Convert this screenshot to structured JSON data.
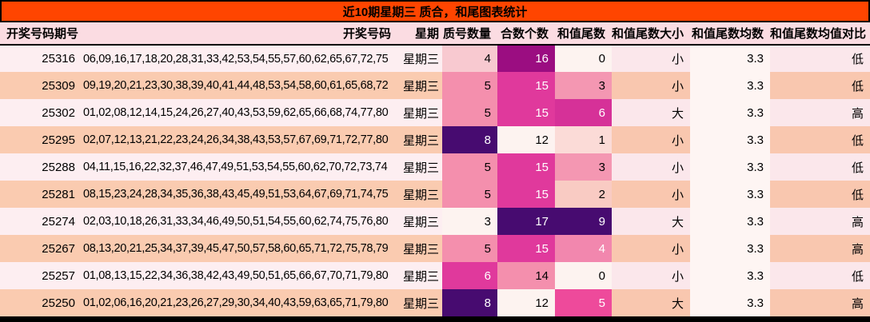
{
  "chart_data": {
    "type": "table",
    "title": "近10期星期三 质合，和尾图表统计",
    "columns": [
      {
        "key": "issue",
        "label": "开奖号码期号"
      },
      {
        "key": "numbers",
        "label": "开奖号码"
      },
      {
        "key": "week",
        "label": "星期"
      },
      {
        "key": "prime_count",
        "label": "质号数量"
      },
      {
        "key": "composite_count",
        "label": "合数个数"
      },
      {
        "key": "sum_tail",
        "label": "和值尾数"
      },
      {
        "key": "tail_size",
        "label": "和值尾数大小"
      },
      {
        "key": "tail_mean",
        "label": "和值尾数均数"
      },
      {
        "key": "tail_vs_mean",
        "label": "和值尾数均值对比"
      }
    ],
    "rows": [
      {
        "issue": "25316",
        "numbers": "06,09,16,17,18,20,28,31,33,42,53,54,55,57,60,62,65,67,72,75",
        "week": "星期三",
        "prime_count": {
          "text": "4",
          "bg": "#F8C9D0",
          "fg": "#000000"
        },
        "composite_count": {
          "text": "16",
          "bg": "#9B0D81",
          "fg": "#FFFFFF"
        },
        "sum_tail": {
          "text": "0",
          "bg": "#FDF3F0",
          "fg": "#000000"
        },
        "tail_size": "小",
        "tail_mean": "3.3",
        "tail_vs_mean": "低"
      },
      {
        "issue": "25309",
        "numbers": "09,19,20,21,23,30,38,39,40,41,44,48,53,54,58,60,61,65,68,72",
        "week": "星期三",
        "prime_count": {
          "text": "5",
          "bg": "#F48FAD",
          "fg": "#000000"
        },
        "composite_count": {
          "text": "15",
          "bg": "#E0399C",
          "fg": "#FFFFFF"
        },
        "sum_tail": {
          "text": "3",
          "bg": "#F497B2",
          "fg": "#000000"
        },
        "tail_size": "小",
        "tail_mean": "3.3",
        "tail_vs_mean": "低"
      },
      {
        "issue": "25302",
        "numbers": "01,02,08,12,14,15,24,26,27,40,43,53,59,62,65,66,68,74,77,80",
        "week": "星期三",
        "prime_count": {
          "text": "5",
          "bg": "#F48FAD",
          "fg": "#000000"
        },
        "composite_count": {
          "text": "15",
          "bg": "#E0399C",
          "fg": "#FFFFFF"
        },
        "sum_tail": {
          "text": "6",
          "bg": "#D63198",
          "fg": "#FFFFFF"
        },
        "tail_size": "大",
        "tail_mean": "3.3",
        "tail_vs_mean": "高"
      },
      {
        "issue": "25295",
        "numbers": "02,07,12,13,21,22,23,24,26,34,38,43,53,57,67,69,71,72,77,80",
        "week": "星期三",
        "prime_count": {
          "text": "8",
          "bg": "#470B70",
          "fg": "#FFFFFF"
        },
        "composite_count": {
          "text": "12",
          "bg": "#FDF3F0",
          "fg": "#000000"
        },
        "sum_tail": {
          "text": "1",
          "bg": "#FBDBD7",
          "fg": "#000000"
        },
        "tail_size": "小",
        "tail_mean": "3.3",
        "tail_vs_mean": "低"
      },
      {
        "issue": "25288",
        "numbers": "04,11,15,16,22,32,37,46,47,49,51,53,54,55,60,62,70,72,73,74",
        "week": "星期三",
        "prime_count": {
          "text": "5",
          "bg": "#F48FAD",
          "fg": "#000000"
        },
        "composite_count": {
          "text": "15",
          "bg": "#E0399C",
          "fg": "#FFFFFF"
        },
        "sum_tail": {
          "text": "3",
          "bg": "#F497B2",
          "fg": "#000000"
        },
        "tail_size": "小",
        "tail_mean": "3.3",
        "tail_vs_mean": "低"
      },
      {
        "issue": "25281",
        "numbers": "08,15,23,24,28,34,35,36,38,43,45,49,51,53,64,67,69,71,74,75",
        "week": "星期三",
        "prime_count": {
          "text": "5",
          "bg": "#F48FAD",
          "fg": "#000000"
        },
        "composite_count": {
          "text": "15",
          "bg": "#E0399C",
          "fg": "#FFFFFF"
        },
        "sum_tail": {
          "text": "2",
          "bg": "#F9CBC3",
          "fg": "#000000"
        },
        "tail_size": "小",
        "tail_mean": "3.3",
        "tail_vs_mean": "低"
      },
      {
        "issue": "25274",
        "numbers": "02,03,10,18,26,31,33,34,46,49,50,51,54,55,60,62,74,75,76,80",
        "week": "星期三",
        "prime_count": {
          "text": "3",
          "bg": "#FDF3F0",
          "fg": "#000000"
        },
        "composite_count": {
          "text": "17",
          "bg": "#470B70",
          "fg": "#FFFFFF"
        },
        "sum_tail": {
          "text": "9",
          "bg": "#470B70",
          "fg": "#FFFFFF"
        },
        "tail_size": "大",
        "tail_mean": "3.3",
        "tail_vs_mean": "高"
      },
      {
        "issue": "25267",
        "numbers": "08,13,20,21,25,34,37,39,45,47,50,57,58,60,65,71,72,75,78,79",
        "week": "星期三",
        "prime_count": {
          "text": "5",
          "bg": "#F48FAD",
          "fg": "#000000"
        },
        "composite_count": {
          "text": "15",
          "bg": "#E0399C",
          "fg": "#FFFFFF"
        },
        "sum_tail": {
          "text": "4",
          "bg": "#F287AE",
          "fg": "#FFFFFF"
        },
        "tail_size": "小",
        "tail_mean": "3.3",
        "tail_vs_mean": "高"
      },
      {
        "issue": "25257",
        "numbers": "01,08,13,15,22,34,36,38,42,43,49,50,51,65,66,67,70,71,79,80",
        "week": "星期三",
        "prime_count": {
          "text": "6",
          "bg": "#E0399C",
          "fg": "#FFFFFF"
        },
        "composite_count": {
          "text": "14",
          "bg": "#F48FAD",
          "fg": "#000000"
        },
        "sum_tail": {
          "text": "0",
          "bg": "#FDF3F0",
          "fg": "#000000"
        },
        "tail_size": "小",
        "tail_mean": "3.3",
        "tail_vs_mean": "低"
      },
      {
        "issue": "25250",
        "numbers": "01,02,06,16,20,21,23,26,27,29,30,34,40,43,59,63,65,71,79,80",
        "week": "星期三",
        "prime_count": {
          "text": "8",
          "bg": "#470B70",
          "fg": "#FFFFFF"
        },
        "composite_count": {
          "text": "12",
          "bg": "#FDF3F0",
          "fg": "#000000"
        },
        "sum_tail": {
          "text": "5",
          "bg": "#EE4A9B",
          "fg": "#FFFFFF"
        },
        "tail_size": "大",
        "tail_mean": "3.3",
        "tail_vs_mean": "高"
      }
    ],
    "layout": {
      "grid": false,
      "legend": "none"
    }
  },
  "theme": {
    "title_bg": "#FF4500",
    "title_fg": "#000000",
    "header_bg": "#FBDCE2",
    "row_light": "#FDEEF1",
    "row_peach": "#FACBB0",
    "mean_col_bg": "#FEF5F3",
    "border": "#000000"
  }
}
